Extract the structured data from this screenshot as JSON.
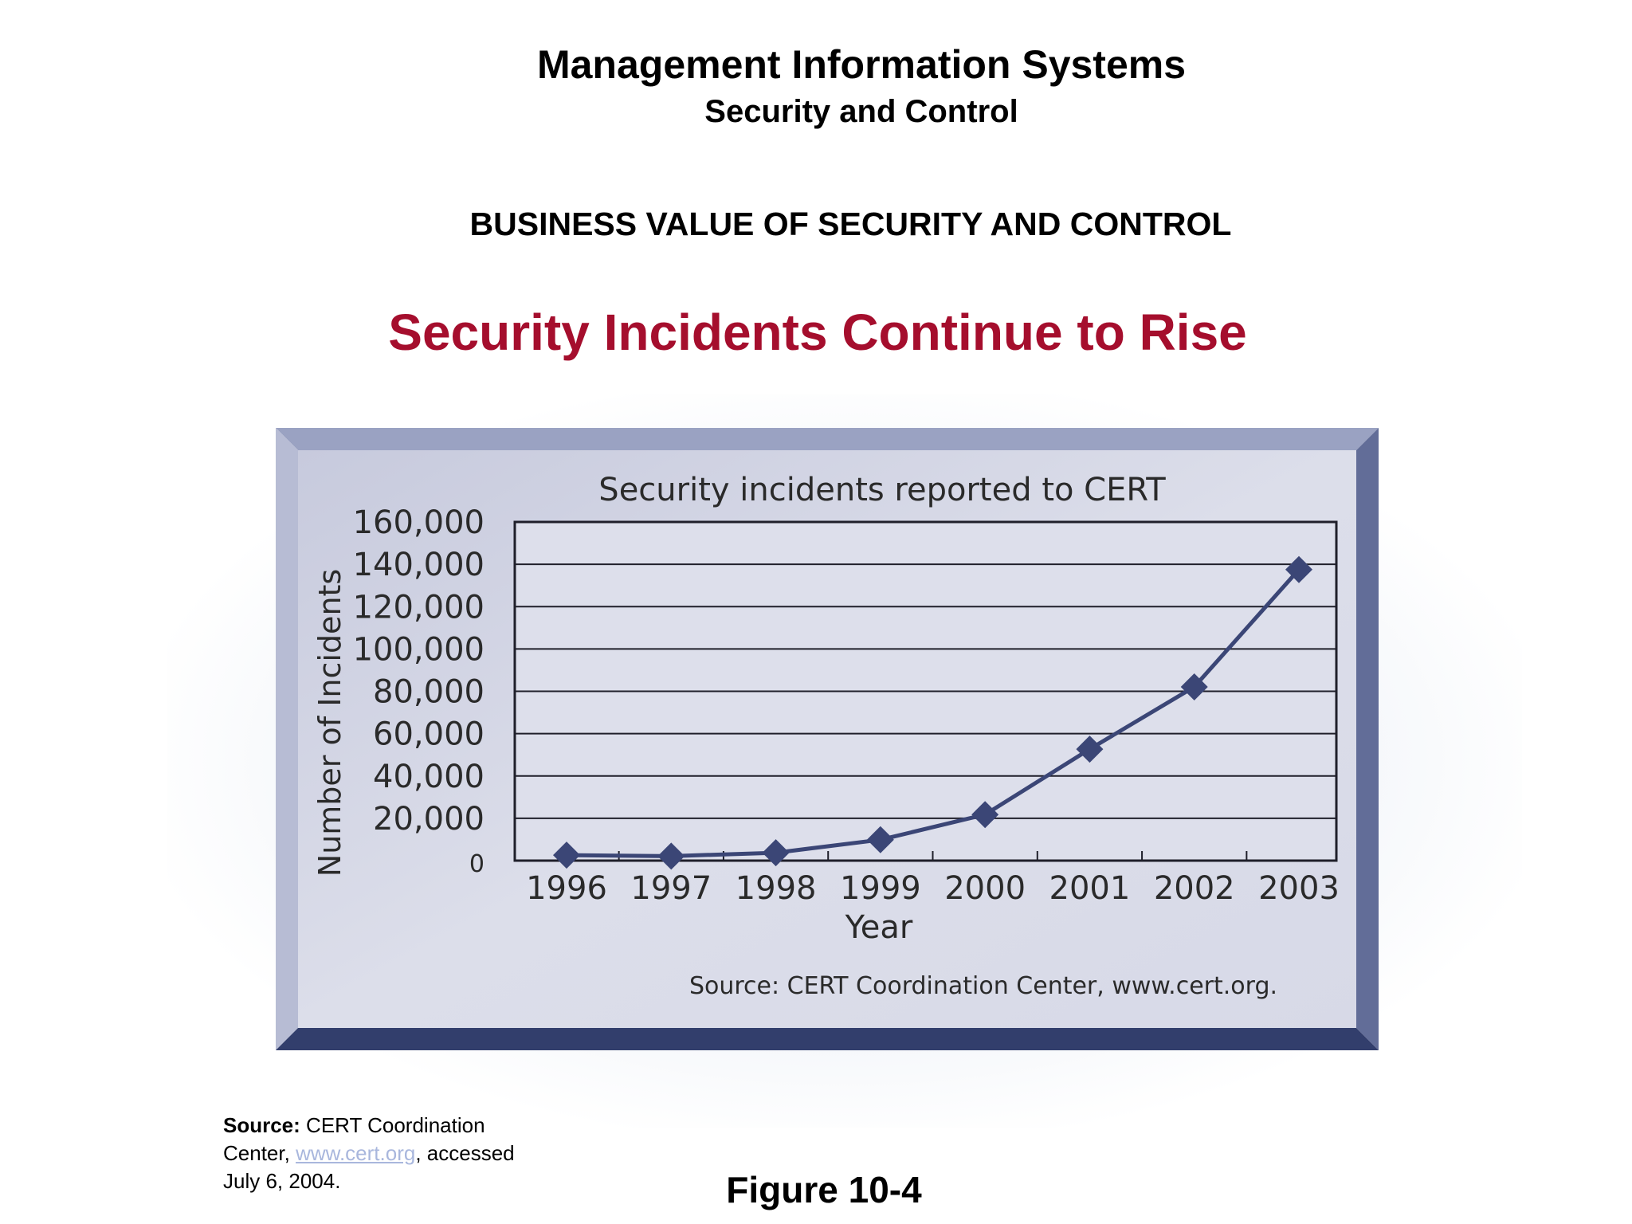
{
  "slide": {
    "header": "Management Information Systems",
    "subheader": "Security and Control",
    "section": "BUSINESS VALUE OF SECURITY AND CONTROL",
    "title": "Security Incidents Continue to Rise",
    "title_color": "#a50e2d",
    "source_label": "Source:",
    "source_text_1": " CERT Coordination",
    "source_text_2": "Center, ",
    "source_link": "www.cert.org",
    "source_text_3": ", accessed",
    "source_text_4": "July 6, 2004.",
    "figure_label": "Figure 10-4"
  },
  "chart_data": {
    "type": "line",
    "title": "Security incidents reported to CERT",
    "xlabel": "Year",
    "ylabel": "Number of Incidents",
    "categories": [
      "1996",
      "1997",
      "1998",
      "1999",
      "2000",
      "2001",
      "2002",
      "2003"
    ],
    "values": [
      2573,
      2134,
      3734,
      9859,
      21756,
      52658,
      82094,
      137529
    ],
    "ylim": [
      0,
      160000
    ],
    "yticks": [
      "0",
      "20,000",
      "40,000",
      "60,000",
      "80,000",
      "100,000",
      "120,000",
      "140,000",
      "160,000"
    ],
    "grid": true,
    "source_note": "Source: CERT Coordination Center, www.cert.org.",
    "colors": {
      "line": "#3b4676",
      "panel": "#d3d6e6",
      "frame": "#5f6a96"
    }
  }
}
